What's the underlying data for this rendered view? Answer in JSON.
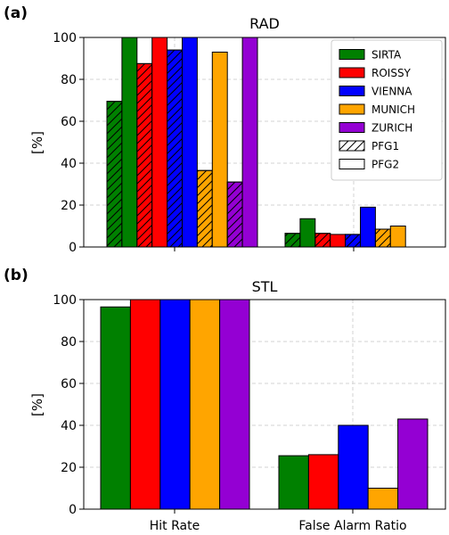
{
  "chart_data": [
    {
      "type": "bar",
      "panel_label": "(a)",
      "title": "RAD",
      "ylabel": "[%]",
      "ylim": [
        0,
        100
      ],
      "yticks": [
        "0",
        "20",
        "40",
        "60",
        "80",
        "100"
      ],
      "categories": [
        "",
        ""
      ],
      "grid": true,
      "legend_position": "top-right",
      "legend": [
        {
          "label": "SIRTA",
          "color": "#008000",
          "style": "solid"
        },
        {
          "label": "ROISSY",
          "color": "#ff0000",
          "style": "solid"
        },
        {
          "label": "VIENNA",
          "color": "#0000ff",
          "style": "solid"
        },
        {
          "label": "MUNICH",
          "color": "#ffa500",
          "style": "solid"
        },
        {
          "label": "ZURICH",
          "color": "#9400d3",
          "style": "solid"
        },
        {
          "label": "PFG1",
          "color": "#ffffff",
          "style": "hatched"
        },
        {
          "label": "PFG2",
          "color": "#ffffff",
          "style": "solid"
        }
      ],
      "series": [
        {
          "name": "SIRTA",
          "variant": "PFG1",
          "color": "#008000",
          "hatched": true,
          "values": [
            69.5,
            6.5
          ]
        },
        {
          "name": "SIRTA",
          "variant": "PFG2",
          "color": "#008000",
          "hatched": false,
          "values": [
            100,
            13.5
          ]
        },
        {
          "name": "ROISSY",
          "variant": "PFG1",
          "color": "#ff0000",
          "hatched": true,
          "values": [
            87.5,
            6.5
          ]
        },
        {
          "name": "ROISSY",
          "variant": "PFG2",
          "color": "#ff0000",
          "hatched": false,
          "values": [
            100,
            6
          ]
        },
        {
          "name": "VIENNA",
          "variant": "PFG1",
          "color": "#0000ff",
          "hatched": true,
          "values": [
            94,
            6
          ]
        },
        {
          "name": "VIENNA",
          "variant": "PFG2",
          "color": "#0000ff",
          "hatched": false,
          "values": [
            100,
            19
          ]
        },
        {
          "name": "MUNICH",
          "variant": "PFG1",
          "color": "#ffa500",
          "hatched": true,
          "values": [
            36.5,
            8.5
          ]
        },
        {
          "name": "MUNICH",
          "variant": "PFG2",
          "color": "#ffa500",
          "hatched": false,
          "values": [
            93,
            10
          ]
        },
        {
          "name": "ZURICH",
          "variant": "PFG1",
          "color": "#9400d3",
          "hatched": true,
          "values": [
            31,
            0
          ]
        },
        {
          "name": "ZURICH",
          "variant": "PFG2",
          "color": "#9400d3",
          "hatched": false,
          "values": [
            100,
            0
          ]
        }
      ]
    },
    {
      "type": "bar",
      "panel_label": "(b)",
      "title": "STL",
      "ylabel": "[%]",
      "ylim": [
        0,
        100
      ],
      "yticks": [
        "0",
        "20",
        "40",
        "60",
        "80",
        "100"
      ],
      "categories": [
        "Hit Rate",
        "False Alarm Ratio"
      ],
      "grid": true,
      "series": [
        {
          "name": "SIRTA",
          "color": "#008000",
          "hatched": false,
          "values": [
            96.5,
            25.5
          ]
        },
        {
          "name": "ROISSY",
          "color": "#ff0000",
          "hatched": false,
          "values": [
            100,
            26
          ]
        },
        {
          "name": "VIENNA",
          "color": "#0000ff",
          "hatched": false,
          "values": [
            100,
            40
          ]
        },
        {
          "name": "MUNICH",
          "color": "#ffa500",
          "hatched": false,
          "values": [
            100,
            10
          ]
        },
        {
          "name": "ZURICH",
          "color": "#9400d3",
          "hatched": false,
          "values": [
            100,
            43
          ]
        }
      ]
    }
  ]
}
